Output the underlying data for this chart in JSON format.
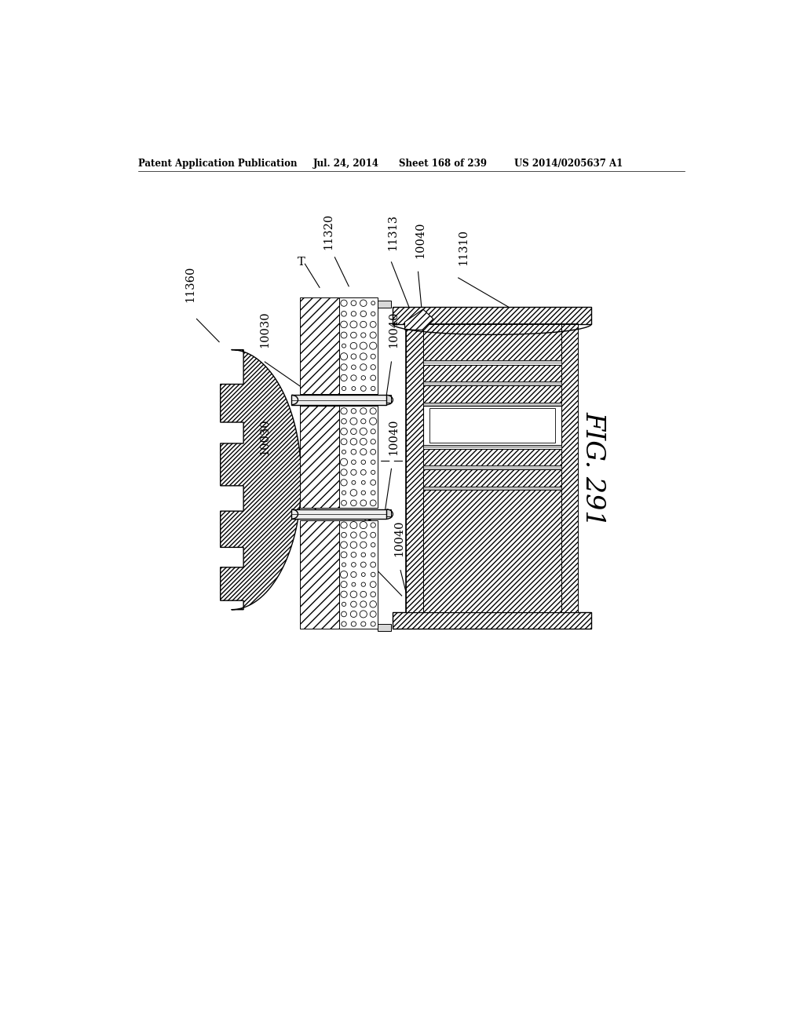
{
  "bg_color": "#ffffff",
  "header_text": "Patent Application Publication",
  "header_date": "Jul. 24, 2014",
  "header_sheet": "Sheet 168 of 239",
  "header_patent": "US 2014/0205637 A1",
  "fig_label": "FIG. 291",
  "line_color": "#000000"
}
